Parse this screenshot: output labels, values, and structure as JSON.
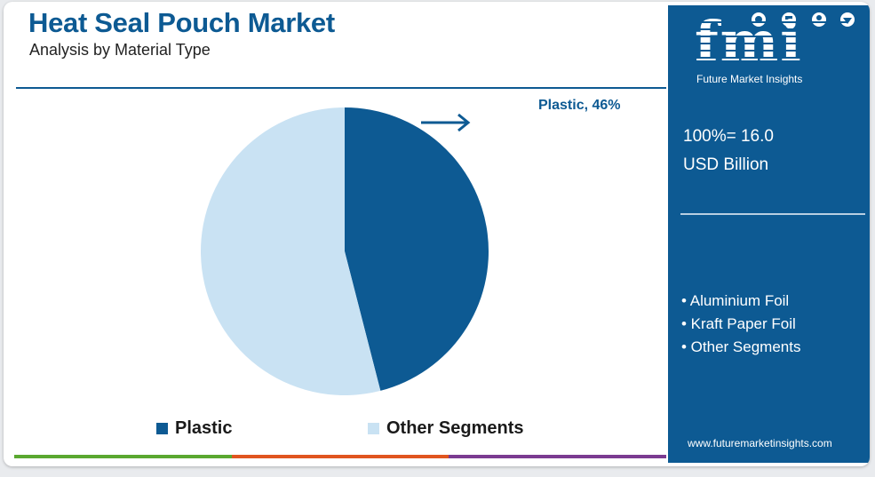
{
  "header": {
    "title": "Heat Seal Pouch Market",
    "subtitle": "Analysis by Material Type"
  },
  "chart_data": {
    "type": "pie",
    "title": "Heat Seal Pouch Market",
    "subtitle": "Analysis by Material Type",
    "slices": [
      {
        "label": "Plastic",
        "value": 46,
        "color": "#0d5a93"
      },
      {
        "label": "Other Segments",
        "value": 54,
        "color": "#c9e2f3"
      }
    ],
    "annotation": "Plastic, 46%",
    "legend": [
      "Plastic",
      "Other Segments"
    ],
    "legend_position": "bottom"
  },
  "sidebar": {
    "brand": "fmi",
    "brand_name": "Future Market Insights",
    "total_line1": "100%= 16.0",
    "total_line2": "USD Billion",
    "segments": [
      "• Aluminium Foil",
      "• Kraft Paper Foil",
      "• Other Segments"
    ],
    "website": "www.futuremarketinsights.com"
  },
  "colors": {
    "primary": "#0d5a93",
    "light": "#c9e2f3",
    "strip": [
      "#5aa830",
      "#e0551f",
      "#7b3b91"
    ]
  }
}
